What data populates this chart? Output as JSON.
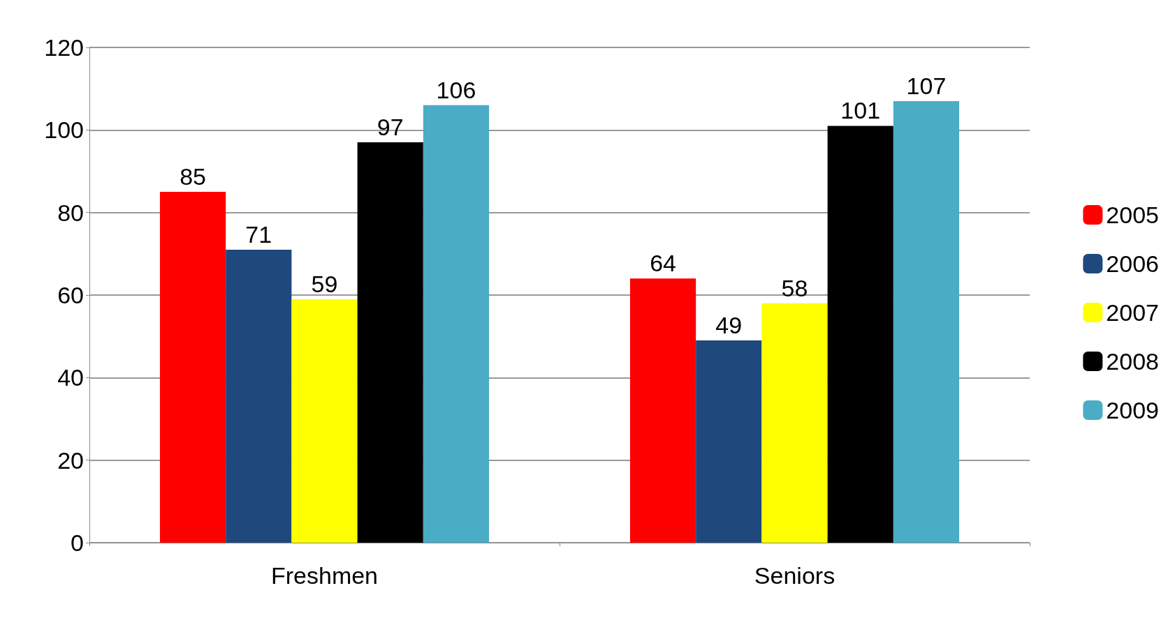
{
  "chart_data": {
    "type": "bar",
    "categories": [
      "Freshmen",
      "Seniors"
    ],
    "series": [
      {
        "name": "2005",
        "color": "#ff0000",
        "values": [
          85,
          64
        ]
      },
      {
        "name": "2006",
        "color": "#1f497d",
        "values": [
          71,
          49
        ]
      },
      {
        "name": "2007",
        "color": "#ffff00",
        "values": [
          59,
          58
        ]
      },
      {
        "name": "2008",
        "color": "#000000",
        "values": [
          97,
          101
        ]
      },
      {
        "name": "2009",
        "color": "#4bacc6",
        "values": [
          106,
          107
        ]
      }
    ],
    "ylim": [
      0,
      120
    ],
    "yticks": [
      0,
      20,
      40,
      60,
      80,
      100,
      120
    ],
    "grid": "y",
    "legend": "right",
    "data_labels": true
  }
}
